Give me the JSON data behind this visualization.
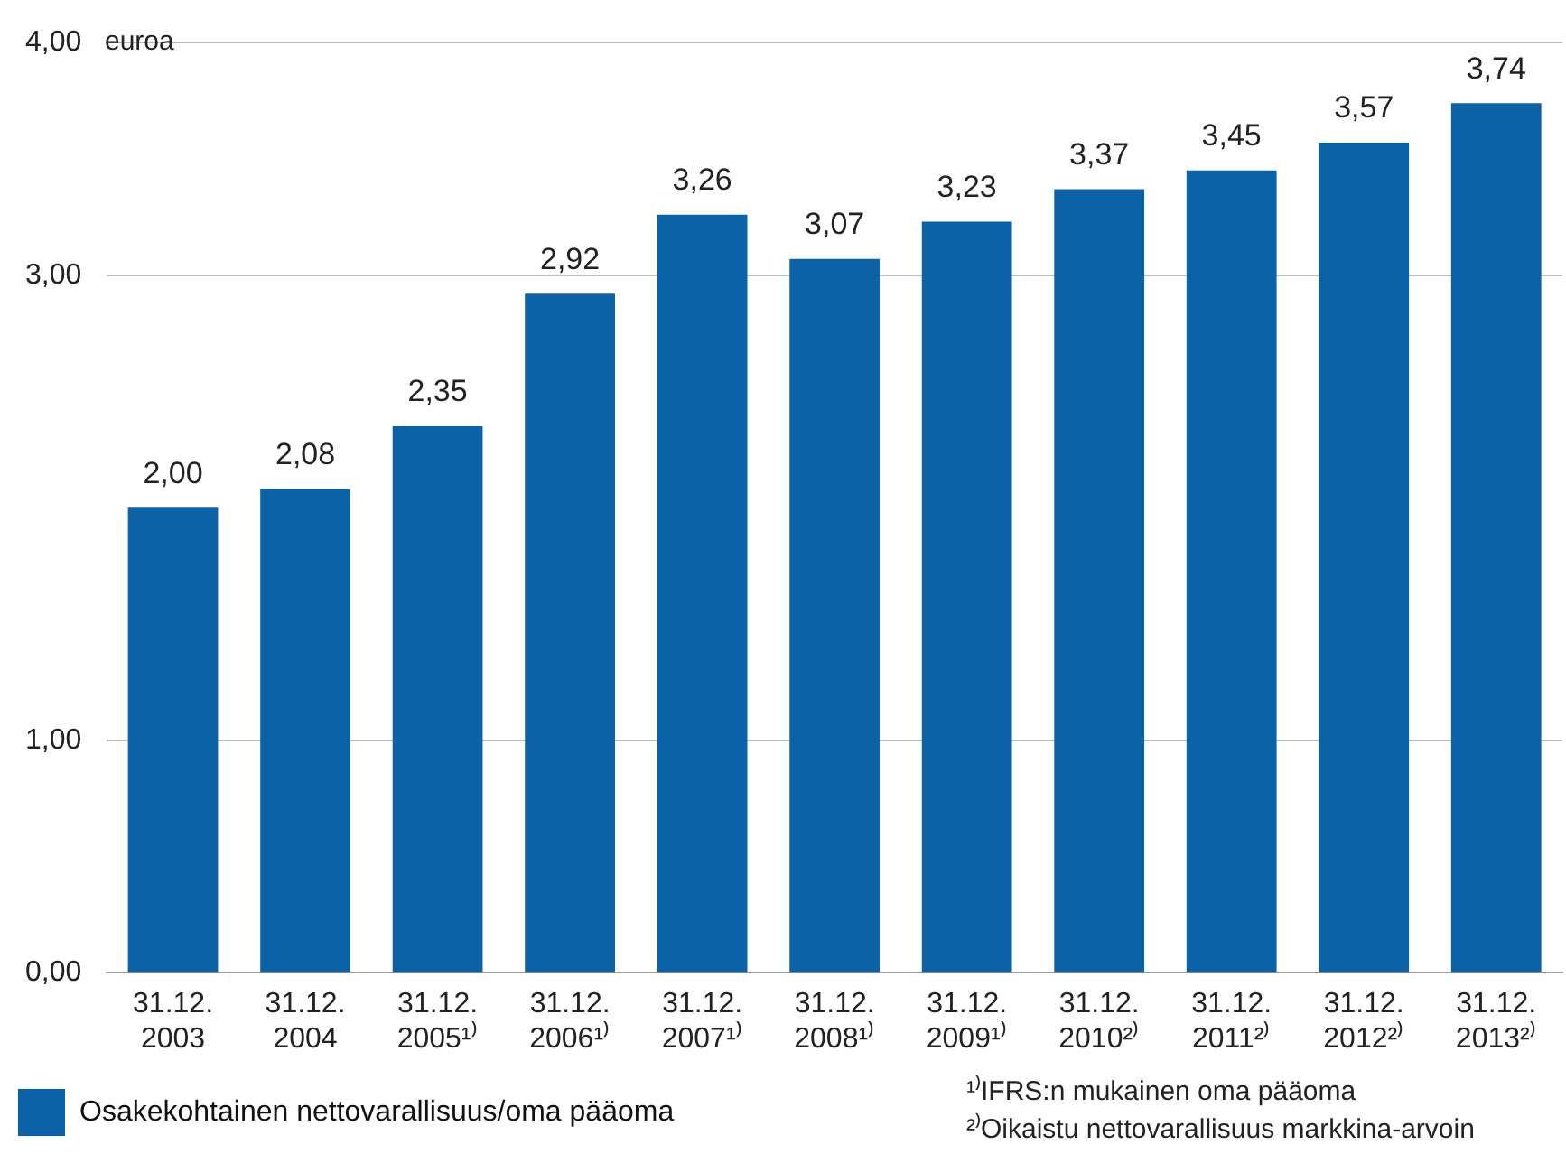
{
  "chart_data": {
    "type": "bar",
    "ylabel": "euroa",
    "categories": [
      "31.12. 2003",
      "31.12. 2004",
      "31.12. 2005¹⁾",
      "31.12. 2006¹⁾",
      "31.12. 2007¹⁾",
      "31.12. 2008¹⁾",
      "31.12. 2009¹⁾",
      "31.12. 2010²⁾",
      "31.12. 2011²⁾",
      "31.12. 2012²⁾",
      "31.12. 2013²⁾"
    ],
    "series": [
      {
        "name": "Osakekohtainen nettovarallisuus/oma pääoma",
        "color": "#0c62a6",
        "values": [
          2.0,
          2.08,
          2.35,
          2.92,
          3.26,
          3.07,
          3.23,
          3.37,
          3.45,
          3.57,
          3.74
        ],
        "value_labels": [
          "2,00",
          "2,08",
          "2,35",
          "2,92",
          "3,26",
          "3,07",
          "3,23",
          "3,37",
          "3,45",
          "3,57",
          "3,74"
        ]
      }
    ],
    "ylim": [
      0,
      4
    ],
    "yticks": [
      {
        "value": 0,
        "label": "0,00"
      },
      {
        "value": 1,
        "label": "1,00"
      },
      {
        "value": 3,
        "label": "3,00"
      },
      {
        "value": 4,
        "label": "4,00"
      }
    ],
    "grid": "y",
    "legend": "bottom left",
    "annotations": [
      "¹⁾IFRS:n mukainen oma pääoma",
      "²⁾Oikaistu nettovarallisuus markkina-arvoin"
    ]
  }
}
